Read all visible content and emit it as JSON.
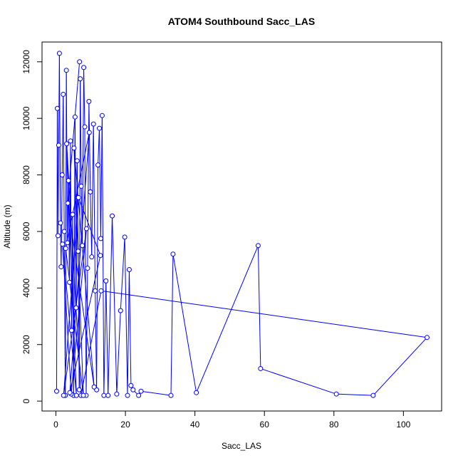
{
  "chart_data": {
    "type": "line",
    "title": "ATOM4 Southbound Sacc_LAS",
    "xlabel": "Sacc_LAS",
    "ylabel": "Altitude (m)",
    "xlim": [
      -4,
      111
    ],
    "ylim": [
      -350,
      12700
    ],
    "x_ticks": [
      0,
      20,
      40,
      60,
      80,
      100
    ],
    "y_ticks": [
      0,
      2000,
      4000,
      6000,
      8000,
      10000,
      12000
    ],
    "grid": false,
    "legend": "none",
    "marker": "open-circle",
    "colors": {
      "series": "#0000ff",
      "axis": "#000000",
      "background": "#ffffff"
    },
    "series": [
      {
        "points": [
          [
            0.2,
            350
          ],
          [
            0.4,
            10350
          ],
          [
            0.6,
            5850
          ],
          [
            0.8,
            9050
          ],
          [
            1.0,
            12300
          ],
          [
            1.3,
            6300
          ],
          [
            1.5,
            4750
          ],
          [
            1.8,
            8000
          ],
          [
            2.1,
            10850
          ],
          [
            2.4,
            6000
          ],
          [
            2.7,
            200
          ],
          [
            3.0,
            11700
          ],
          [
            3.3,
            5600
          ],
          [
            3.6,
            7800
          ],
          [
            3.9,
            4200
          ],
          [
            4.2,
            9200
          ],
          [
            4.5,
            2500
          ],
          [
            4.8,
            6600
          ],
          [
            5.1,
            200
          ],
          [
            5.5,
            10050
          ],
          [
            5.8,
            3300
          ],
          [
            6.1,
            8500
          ],
          [
            6.4,
            5300
          ],
          [
            6.7,
            400
          ],
          [
            7.0,
            11400
          ],
          [
            7.3,
            7600
          ],
          [
            7.6,
            5500
          ],
          [
            8.0,
            11800
          ],
          [
            8.3,
            9700
          ],
          [
            8.7,
            200
          ],
          [
            9.1,
            4700
          ],
          [
            9.5,
            10600
          ],
          [
            9.9,
            7400
          ],
          [
            10.3,
            5100
          ],
          [
            10.8,
            9800
          ],
          [
            11.3,
            3900
          ],
          [
            11.7,
            400
          ],
          [
            12.1,
            8350
          ],
          [
            12.5,
            9650
          ],
          [
            12.9,
            5750
          ],
          [
            13.3,
            10100
          ],
          [
            13.8,
            200
          ],
          [
            14.4,
            4250
          ],
          [
            15.0,
            200
          ],
          [
            16.2,
            6550
          ],
          [
            17.5,
            250
          ],
          [
            18.6,
            3200
          ],
          [
            19.8,
            5800
          ],
          [
            20.6,
            200
          ],
          [
            21.1,
            4650
          ],
          [
            21.6,
            550
          ],
          [
            22.2,
            400
          ],
          [
            23.8,
            200
          ],
          [
            24.5,
            350
          ],
          [
            33.1,
            200
          ],
          [
            33.7,
            5200
          ],
          [
            40.4,
            300
          ],
          [
            58.2,
            5500
          ],
          [
            58.9,
            1150
          ],
          [
            80.7,
            250
          ],
          [
            91.3,
            200
          ],
          [
            106.8,
            2250
          ],
          [
            13.0,
            3900
          ],
          [
            7.2,
            200
          ],
          [
            3.1,
            9100
          ],
          [
            5.9,
            200
          ],
          [
            1.9,
            5550
          ],
          [
            4.4,
            250
          ],
          [
            8.8,
            6100
          ],
          [
            2.2,
            200
          ],
          [
            6.5,
            7200
          ],
          [
            12.8,
            5150
          ],
          [
            4.0,
            300
          ],
          [
            9.6,
            9500
          ],
          [
            2.8,
            5400
          ],
          [
            7.9,
            200
          ],
          [
            5.2,
            8950
          ],
          [
            11.0,
            500
          ],
          [
            3.4,
            7000
          ],
          [
            6.8,
            12000
          ]
        ]
      }
    ]
  }
}
